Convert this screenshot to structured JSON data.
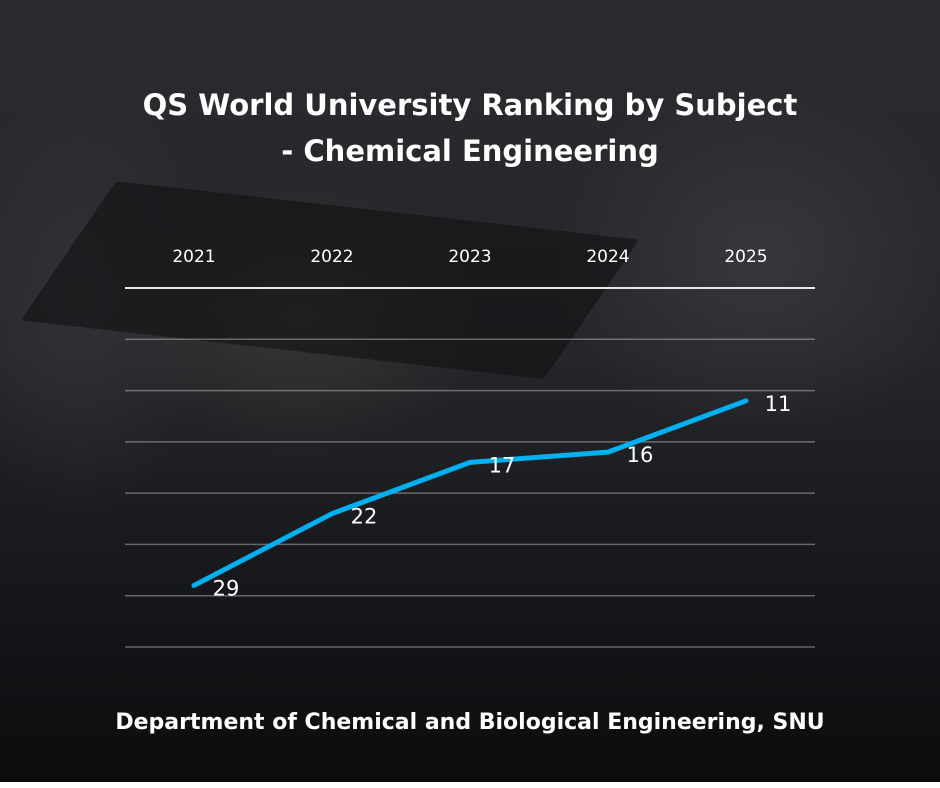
{
  "chart_data": {
    "type": "line",
    "title": "QS World University Ranking by Subject",
    "subtitle": "- Chemical Engineering",
    "categories": [
      "2021",
      "2022",
      "2023",
      "2024",
      "2025"
    ],
    "values": [
      29,
      22,
      17,
      16,
      11
    ],
    "ylim": [
      0,
      35
    ],
    "y_reversed": true,
    "y_gridline_step": 5,
    "y_tick_labels_visible": false,
    "x_axis_position": "top",
    "grid": true,
    "data_labels": true,
    "line_color": "#00b0f0",
    "footer": "Department of Chemical and Biological Engineering, SNU"
  }
}
